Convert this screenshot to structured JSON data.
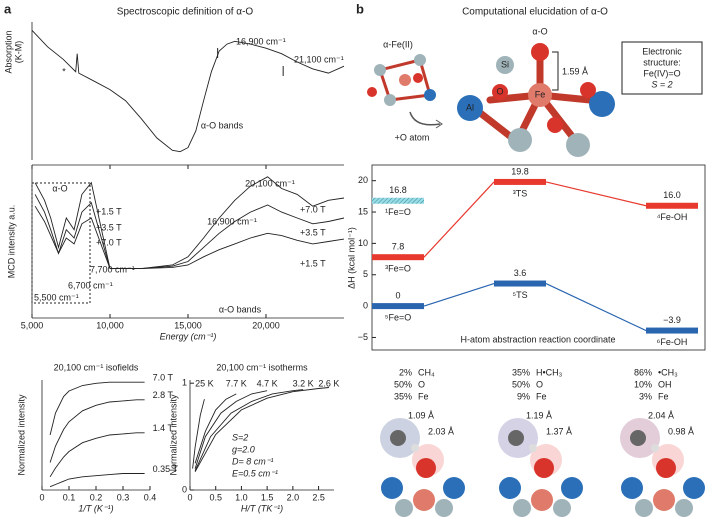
{
  "panel_a": {
    "label": "a",
    "title": "Spectroscopic definition of α-O",
    "absorption": {
      "type": "line",
      "ylabel": [
        "Absorption",
        "(K-M)"
      ],
      "color": "#222",
      "xlim": [
        5000,
        25000
      ],
      "ylim": [
        0,
        1
      ],
      "x": [
        5000,
        6000,
        7000,
        7800,
        7900,
        8000,
        9000,
        10000,
        11000,
        12000,
        13000,
        14000,
        14500,
        15000,
        15500,
        16000,
        16500,
        17000,
        17500,
        18000,
        19000,
        20000,
        21000,
        22000,
        23000,
        24000,
        25000
      ],
      "values": [
        0.94,
        0.82,
        0.73,
        0.64,
        0.77,
        0.63,
        0.57,
        0.51,
        0.43,
        0.3,
        0.16,
        0.07,
        0.06,
        0.09,
        0.21,
        0.43,
        0.64,
        0.79,
        0.84,
        0.86,
        0.84,
        0.81,
        0.77,
        0.71,
        0.66,
        0.63,
        0.68
      ],
      "annotations": [
        "*",
        "16,900 cm⁻¹",
        "21,100 cm⁻¹",
        "α-O bands"
      ]
    },
    "mcd": {
      "type": "line",
      "ylabel": "MCD intensity a.u.",
      "xlabel": "Energy (cm⁻¹)",
      "color": "#222",
      "xlim": [
        5000,
        25000
      ],
      "ylim": [
        -0.3,
        1
      ],
      "xticks": [
        {
          "value": 5000,
          "label": "5,000"
        },
        {
          "value": 10000,
          "label": "10,000"
        },
        {
          "value": 15000,
          "label": "15,000"
        },
        {
          "value": 20000,
          "label": "20,000"
        }
      ],
      "series": [
        {
          "name": "+7.0 T",
          "x": [
            5200,
            5800,
            6200,
            6700,
            7200,
            7700,
            8200,
            8800,
            10000,
            12000,
            14000,
            15000,
            16000,
            17000,
            18000,
            19000,
            20100,
            21000,
            22000,
            23000,
            24000,
            25000
          ],
          "values": [
            0.85,
            0.7,
            0.55,
            0.3,
            0.55,
            0.45,
            0.75,
            0.85,
            0.12,
            0.12,
            0.15,
            0.22,
            0.38,
            0.55,
            0.7,
            0.82,
            0.9,
            0.8,
            0.75,
            0.65,
            0.7,
            0.72
          ]
        },
        {
          "name": "+3.5 T",
          "x": [
            5200,
            5800,
            6200,
            6700,
            7200,
            7700,
            8200,
            8800,
            10000,
            12000,
            14000,
            15000,
            16000,
            17000,
            18000,
            19000,
            20100,
            21000,
            22000,
            23000,
            24000,
            25000
          ],
          "values": [
            0.75,
            0.6,
            0.45,
            0.25,
            0.45,
            0.38,
            0.6,
            0.68,
            0.12,
            0.12,
            0.14,
            0.18,
            0.3,
            0.42,
            0.52,
            0.6,
            0.66,
            0.6,
            0.55,
            0.5,
            0.52,
            0.55
          ]
        },
        {
          "name": "+1.5 T",
          "x": [
            5200,
            5800,
            6200,
            6700,
            7200,
            7700,
            8200,
            8800,
            10000,
            12000,
            14000,
            15000,
            16000,
            17000,
            18000,
            19000,
            20100,
            21000,
            22000,
            23000,
            24000,
            25000
          ],
          "values": [
            0.65,
            0.52,
            0.4,
            0.25,
            0.38,
            0.33,
            0.5,
            0.55,
            0.12,
            0.12,
            0.13,
            0.15,
            0.22,
            0.28,
            0.33,
            0.38,
            0.42,
            0.4,
            0.36,
            0.33,
            0.35,
            0.37
          ]
        }
      ],
      "annotations": [
        "α-O",
        "+1.5 T",
        "+3.5 T",
        "+7.0 T",
        "7,700 cm⁻¹",
        "6,700 cm⁻¹",
        "5,500 cm⁻¹",
        "20,100 cm⁻¹",
        "16,900 cm⁻¹",
        "α-O bands"
      ]
    },
    "isofields": {
      "type": "line",
      "title": "20,100 cm⁻¹ isofields",
      "xlabel": "1/T (K⁻¹)",
      "ylabel": "Normalized intensity",
      "color": "#222",
      "xlim": [
        0,
        0.4
      ],
      "ylim": [
        0,
        1
      ],
      "xticks": [
        0,
        0.1,
        0.2,
        0.3,
        0.4
      ],
      "x": [
        0.03,
        0.05,
        0.08,
        0.1,
        0.15,
        0.2,
        0.25,
        0.3,
        0.35,
        0.38
      ],
      "series": [
        {
          "name": "7.0 T",
          "values": [
            0.5,
            0.7,
            0.85,
            0.9,
            0.95,
            0.97,
            0.98,
            0.98,
            0.98,
            0.98
          ]
        },
        {
          "name": "2.8 T",
          "values": [
            0.25,
            0.4,
            0.55,
            0.62,
            0.72,
            0.77,
            0.8,
            0.81,
            0.82,
            0.82
          ]
        },
        {
          "name": "1.4 T",
          "values": [
            0.12,
            0.2,
            0.3,
            0.35,
            0.43,
            0.47,
            0.5,
            0.51,
            0.52,
            0.52
          ]
        },
        {
          "name": "0.35 T",
          "values": [
            0.03,
            0.05,
            0.08,
            0.1,
            0.12,
            0.13,
            0.14,
            0.15,
            0.15,
            0.15
          ]
        }
      ]
    },
    "isotherms": {
      "type": "line",
      "title": "20,100 cm⁻¹ isotherms",
      "xlabel": "H/T (TK⁻¹)",
      "ylabel": "Normalized intensity",
      "color": "#222",
      "xlim": [
        0,
        2.8
      ],
      "ylim": [
        0,
        1.03
      ],
      "xticks": [
        0,
        0.5,
        {
          "value": 1,
          "label": "1.0"
        },
        1.5,
        {
          "value": 2,
          "label": "2.0"
        },
        2.5
      ],
      "yticks": [
        0,
        1
      ],
      "series": [
        {
          "name": "25 K",
          "x": [
            0.05,
            0.1,
            0.2,
            0.28
          ],
          "values": [
            0.2,
            0.4,
            0.7,
            0.85
          ]
        },
        {
          "name": "7.7 K",
          "x": [
            0.1,
            0.3,
            0.5,
            0.7,
            0.9
          ],
          "values": [
            0.25,
            0.55,
            0.75,
            0.85,
            0.9
          ]
        },
        {
          "name": "4.7 K",
          "x": [
            0.1,
            0.3,
            0.6,
            0.9,
            1.2,
            1.5
          ],
          "values": [
            0.2,
            0.5,
            0.72,
            0.83,
            0.9,
            0.93
          ]
        },
        {
          "name": "3.2 K",
          "x": [
            0.1,
            0.4,
            0.8,
            1.2,
            1.6,
            2.0,
            2.2
          ],
          "values": [
            0.18,
            0.5,
            0.72,
            0.83,
            0.9,
            0.93,
            0.94
          ]
        },
        {
          "name": "2.6 K",
          "x": [
            0.1,
            0.5,
            1.0,
            1.5,
            2.0,
            2.5,
            2.7
          ],
          "values": [
            0.17,
            0.52,
            0.75,
            0.86,
            0.92,
            0.95,
            0.96
          ]
        }
      ],
      "annotations": [
        "S=2",
        "g=2.0",
        "D= 8 cm⁻¹",
        "E=0.5 cm⁻¹"
      ]
    }
  },
  "panel_b": {
    "label": "b",
    "title": "Computational elucidation of α-O",
    "structure_labels": [
      "α-Fe(II)",
      "α-O",
      "Si",
      "O",
      "Fe",
      "Al",
      "1.59 Å",
      "+O atom"
    ],
    "electronic_box": [
      "Electronic",
      "structure:",
      "Fe(IV)=O",
      "S = 2"
    ],
    "energy": {
      "type": "levels",
      "ylabel": "ΔH (kcal mol⁻¹)",
      "xlabel": "H-atom abstraction reaction coordinate",
      "ylim": [
        -7,
        22.5
      ],
      "yticks": [
        {
          "value": -5,
          "label": "−5"
        },
        0,
        5,
        10,
        15,
        20
      ],
      "series": [
        {
          "color": "#46b8c8",
          "hatched": true,
          "values": [
            16.8,
            null,
            null
          ],
          "labels": [
            "¹Fe=O",
            null,
            null
          ]
        },
        {
          "color": "#e8392e",
          "values": [
            7.8,
            19.8,
            16.0
          ],
          "value_labels": [
            "7.8",
            "19.8",
            "16.0"
          ],
          "labels": [
            "³Fe=O",
            "³TS",
            "⁴Fe-OH"
          ]
        },
        {
          "color": "#2a66b0",
          "values": [
            0,
            3.6,
            -3.9
          ],
          "value_labels": [
            "0",
            "3.6",
            "−3.9"
          ],
          "labels": [
            "⁵Fe=O",
            "⁵TS",
            "⁶Fe-OH"
          ]
        }
      ]
    },
    "intermediates": [
      {
        "composition": [
          [
            "2%",
            "CH₄"
          ],
          [
            "50%",
            "O"
          ],
          [
            "35%",
            "Fe"
          ]
        ],
        "distances": [
          "1.09 Å",
          "2.03 Å"
        ]
      },
      {
        "composition": [
          [
            "35%",
            "H•CH₃"
          ],
          [
            "50%",
            "O"
          ],
          [
            "9%",
            "Fe"
          ]
        ],
        "distances": [
          "1.19 Å",
          "1.37 Å"
        ]
      },
      {
        "composition": [
          [
            "86%",
            "•CH₃"
          ],
          [
            "10%",
            "OH"
          ],
          [
            "3%",
            "Fe"
          ]
        ],
        "distances": [
          "2.04 Å",
          "0.98 Å"
        ]
      }
    ]
  }
}
